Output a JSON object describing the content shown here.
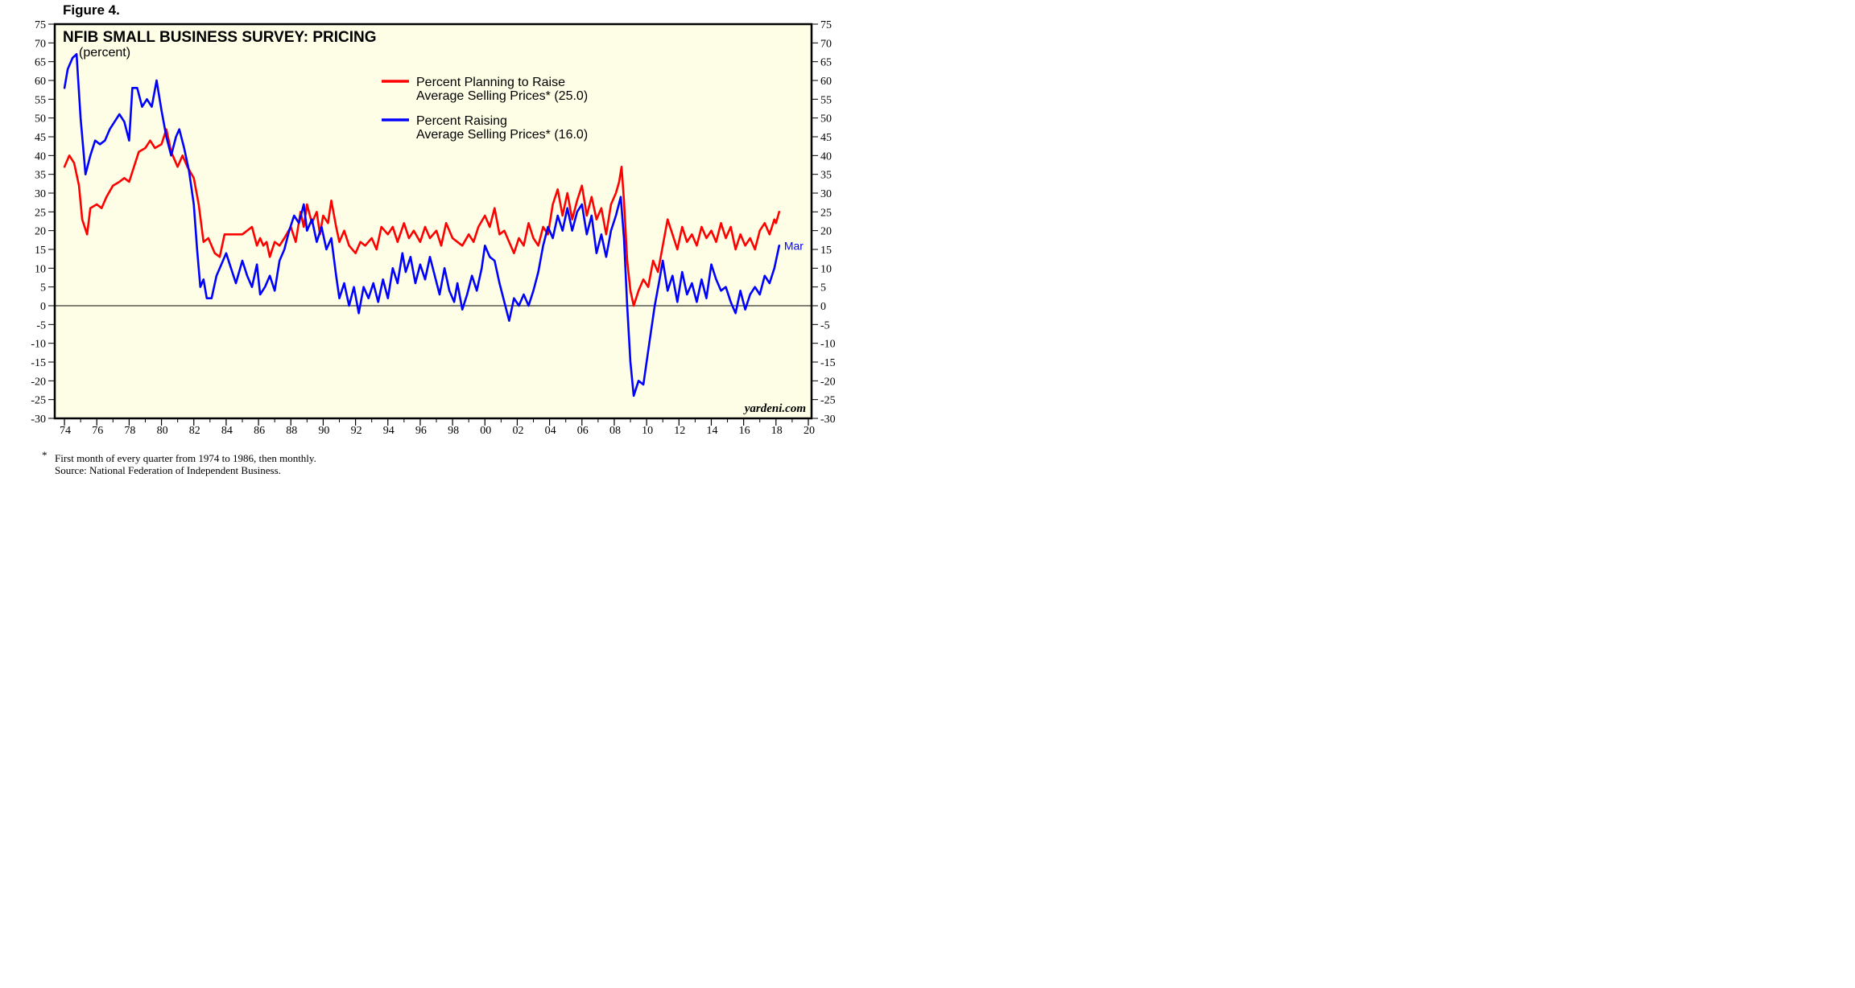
{
  "figure_label": "Figure 4.",
  "brand": "yardeni.com",
  "footnote": {
    "marker": "*",
    "line1": "First month of every quarter from 1974 to 1986, then monthly.",
    "line2": "Source: National Federation of Independent Business."
  },
  "colors": {
    "plot_background": "#fefee6",
    "planning_series": "#ff0000",
    "raising_series": "#0000ff",
    "frame": "#000000"
  },
  "chart_data": {
    "type": "line",
    "title": "NFIB SMALL BUSINESS SURVEY: PRICING",
    "subtitle": "(percent)",
    "ylim": [
      -30,
      75
    ],
    "ytick_step": 5,
    "xlim": [
      1973.4,
      2020.2
    ],
    "xtick_years": [
      1974,
      1976,
      1978,
      1980,
      1982,
      1984,
      1986,
      1988,
      1990,
      1992,
      1994,
      1996,
      1998,
      2000,
      2002,
      2004,
      2006,
      2008,
      2010,
      2012,
      2014,
      2016,
      2018,
      2020
    ],
    "xtick_labels": [
      "74",
      "76",
      "78",
      "80",
      "82",
      "84",
      "86",
      "88",
      "90",
      "92",
      "94",
      "96",
      "98",
      "00",
      "02",
      "04",
      "06",
      "08",
      "10",
      "12",
      "14",
      "16",
      "18",
      "20"
    ],
    "grid": false,
    "zero_line": true,
    "legend_position": "top-center",
    "end_label": "Mar",
    "series": [
      {
        "name": "Percent Planning to Raise",
        "name_line2": "Average Selling Prices* (25.0)",
        "color": "#ff0000",
        "points": [
          [
            1974.0,
            37
          ],
          [
            1974.3,
            40
          ],
          [
            1974.6,
            38
          ],
          [
            1974.9,
            32
          ],
          [
            1975.1,
            23
          ],
          [
            1975.4,
            19
          ],
          [
            1975.6,
            26
          ],
          [
            1976.0,
            27
          ],
          [
            1976.3,
            26
          ],
          [
            1976.6,
            29
          ],
          [
            1977.0,
            32
          ],
          [
            1977.4,
            33
          ],
          [
            1977.7,
            34
          ],
          [
            1978.0,
            33
          ],
          [
            1978.3,
            37
          ],
          [
            1978.6,
            41
          ],
          [
            1979.0,
            42
          ],
          [
            1979.3,
            44
          ],
          [
            1979.6,
            42
          ],
          [
            1980.0,
            43
          ],
          [
            1980.3,
            47
          ],
          [
            1980.6,
            41
          ],
          [
            1981.0,
            37
          ],
          [
            1981.3,
            40
          ],
          [
            1981.6,
            37
          ],
          [
            1982.0,
            34
          ],
          [
            1982.3,
            27
          ],
          [
            1982.6,
            17
          ],
          [
            1982.9,
            18
          ],
          [
            1983.3,
            14
          ],
          [
            1983.6,
            13
          ],
          [
            1983.9,
            19
          ],
          [
            1984.3,
            19
          ],
          [
            1984.6,
            19
          ],
          [
            1985.0,
            19
          ],
          [
            1985.3,
            20
          ],
          [
            1985.6,
            21
          ],
          [
            1985.9,
            16
          ],
          [
            1986.1,
            18
          ],
          [
            1986.3,
            16
          ],
          [
            1986.5,
            17
          ],
          [
            1986.7,
            13
          ],
          [
            1987.0,
            17
          ],
          [
            1987.3,
            16
          ],
          [
            1987.6,
            18
          ],
          [
            1988.0,
            21
          ],
          [
            1988.3,
            17
          ],
          [
            1988.6,
            25
          ],
          [
            1988.8,
            21
          ],
          [
            1989.0,
            27
          ],
          [
            1989.3,
            22
          ],
          [
            1989.6,
            25
          ],
          [
            1989.8,
            19
          ],
          [
            1990.0,
            24
          ],
          [
            1990.3,
            22
          ],
          [
            1990.5,
            28
          ],
          [
            1990.8,
            21
          ],
          [
            1991.0,
            17
          ],
          [
            1991.3,
            20
          ],
          [
            1991.6,
            16
          ],
          [
            1992.0,
            14
          ],
          [
            1992.3,
            17
          ],
          [
            1992.6,
            16
          ],
          [
            1993.0,
            18
          ],
          [
            1993.3,
            15
          ],
          [
            1993.6,
            21
          ],
          [
            1994.0,
            19
          ],
          [
            1994.3,
            21
          ],
          [
            1994.6,
            17
          ],
          [
            1995.0,
            22
          ],
          [
            1995.3,
            18
          ],
          [
            1995.6,
            20
          ],
          [
            1996.0,
            17
          ],
          [
            1996.3,
            21
          ],
          [
            1996.6,
            18
          ],
          [
            1997.0,
            20
          ],
          [
            1997.3,
            16
          ],
          [
            1997.6,
            22
          ],
          [
            1998.0,
            18
          ],
          [
            1998.3,
            17
          ],
          [
            1998.6,
            16
          ],
          [
            1999.0,
            19
          ],
          [
            1999.3,
            17
          ],
          [
            1999.6,
            21
          ],
          [
            2000.0,
            24
          ],
          [
            2000.3,
            21
          ],
          [
            2000.6,
            26
          ],
          [
            2000.9,
            19
          ],
          [
            2001.2,
            20
          ],
          [
            2001.5,
            17
          ],
          [
            2001.8,
            14
          ],
          [
            2002.1,
            18
          ],
          [
            2002.4,
            16
          ],
          [
            2002.7,
            22
          ],
          [
            2003.0,
            18
          ],
          [
            2003.3,
            16
          ],
          [
            2003.6,
            21
          ],
          [
            2003.9,
            19
          ],
          [
            2004.2,
            27
          ],
          [
            2004.5,
            31
          ],
          [
            2004.8,
            24
          ],
          [
            2005.1,
            30
          ],
          [
            2005.4,
            23
          ],
          [
            2005.7,
            28
          ],
          [
            2006.0,
            32
          ],
          [
            2006.3,
            24
          ],
          [
            2006.6,
            29
          ],
          [
            2006.9,
            23
          ],
          [
            2007.2,
            26
          ],
          [
            2007.5,
            19
          ],
          [
            2007.8,
            27
          ],
          [
            2008.1,
            30
          ],
          [
            2008.3,
            33
          ],
          [
            2008.45,
            37
          ],
          [
            2008.6,
            28
          ],
          [
            2008.8,
            12
          ],
          [
            2009.0,
            4
          ],
          [
            2009.2,
            0
          ],
          [
            2009.5,
            4
          ],
          [
            2009.8,
            7
          ],
          [
            2010.1,
            5
          ],
          [
            2010.4,
            12
          ],
          [
            2010.7,
            9
          ],
          [
            2011.0,
            16
          ],
          [
            2011.3,
            23
          ],
          [
            2011.6,
            19
          ],
          [
            2011.9,
            15
          ],
          [
            2012.2,
            21
          ],
          [
            2012.5,
            17
          ],
          [
            2012.8,
            19
          ],
          [
            2013.1,
            16
          ],
          [
            2013.4,
            21
          ],
          [
            2013.7,
            18
          ],
          [
            2014.0,
            20
          ],
          [
            2014.3,
            17
          ],
          [
            2014.6,
            22
          ],
          [
            2014.9,
            18
          ],
          [
            2015.2,
            21
          ],
          [
            2015.5,
            15
          ],
          [
            2015.8,
            19
          ],
          [
            2016.1,
            16
          ],
          [
            2016.4,
            18
          ],
          [
            2016.7,
            15
          ],
          [
            2017.0,
            20
          ],
          [
            2017.3,
            22
          ],
          [
            2017.6,
            19
          ],
          [
            2017.9,
            23
          ],
          [
            2018.0,
            22
          ],
          [
            2018.2,
            25
          ]
        ]
      },
      {
        "name": "Percent Raising",
        "name_line2": "Average Selling Prices* (16.0)",
        "color": "#0000ff",
        "points": [
          [
            1974.0,
            58
          ],
          [
            1974.2,
            63
          ],
          [
            1974.5,
            66
          ],
          [
            1974.75,
            67
          ],
          [
            1975.0,
            50
          ],
          [
            1975.3,
            35
          ],
          [
            1975.6,
            40
          ],
          [
            1975.9,
            44
          ],
          [
            1976.2,
            43
          ],
          [
            1976.5,
            44
          ],
          [
            1976.8,
            47
          ],
          [
            1977.1,
            49
          ],
          [
            1977.4,
            51
          ],
          [
            1977.7,
            49
          ],
          [
            1978.0,
            44
          ],
          [
            1978.2,
            58
          ],
          [
            1978.5,
            58
          ],
          [
            1978.8,
            53
          ],
          [
            1979.1,
            55
          ],
          [
            1979.4,
            53
          ],
          [
            1979.7,
            60
          ],
          [
            1980.0,
            52
          ],
          [
            1980.3,
            45
          ],
          [
            1980.6,
            40
          ],
          [
            1980.9,
            45
          ],
          [
            1981.1,
            47
          ],
          [
            1981.4,
            42
          ],
          [
            1981.7,
            36
          ],
          [
            1982.0,
            27
          ],
          [
            1982.2,
            15
          ],
          [
            1982.4,
            5
          ],
          [
            1982.6,
            7
          ],
          [
            1982.8,
            2
          ],
          [
            1983.1,
            2
          ],
          [
            1983.4,
            8
          ],
          [
            1983.7,
            11
          ],
          [
            1984.0,
            14
          ],
          [
            1984.3,
            10
          ],
          [
            1984.6,
            6
          ],
          [
            1985.0,
            12
          ],
          [
            1985.3,
            8
          ],
          [
            1985.6,
            5
          ],
          [
            1985.9,
            11
          ],
          [
            1986.1,
            3
          ],
          [
            1986.4,
            5
          ],
          [
            1986.7,
            8
          ],
          [
            1987.0,
            4
          ],
          [
            1987.3,
            12
          ],
          [
            1987.6,
            15
          ],
          [
            1987.9,
            20
          ],
          [
            1988.2,
            24
          ],
          [
            1988.5,
            22
          ],
          [
            1988.8,
            27
          ],
          [
            1989.0,
            20
          ],
          [
            1989.3,
            23
          ],
          [
            1989.6,
            17
          ],
          [
            1989.9,
            21
          ],
          [
            1990.2,
            15
          ],
          [
            1990.5,
            18
          ],
          [
            1990.8,
            8
          ],
          [
            1991.0,
            2
          ],
          [
            1991.3,
            6
          ],
          [
            1991.6,
            0
          ],
          [
            1991.9,
            5
          ],
          [
            1992.2,
            -2
          ],
          [
            1992.5,
            5
          ],
          [
            1992.8,
            2
          ],
          [
            1993.1,
            6
          ],
          [
            1993.4,
            1
          ],
          [
            1993.7,
            7
          ],
          [
            1994.0,
            2
          ],
          [
            1994.3,
            10
          ],
          [
            1994.6,
            6
          ],
          [
            1994.9,
            14
          ],
          [
            1995.1,
            9
          ],
          [
            1995.4,
            13
          ],
          [
            1995.7,
            6
          ],
          [
            1996.0,
            11
          ],
          [
            1996.3,
            7
          ],
          [
            1996.6,
            13
          ],
          [
            1996.9,
            8
          ],
          [
            1997.2,
            3
          ],
          [
            1997.5,
            10
          ],
          [
            1997.8,
            4
          ],
          [
            1998.1,
            1
          ],
          [
            1998.3,
            6
          ],
          [
            1998.6,
            -1
          ],
          [
            1998.9,
            3
          ],
          [
            1999.2,
            8
          ],
          [
            1999.5,
            4
          ],
          [
            1999.8,
            10
          ],
          [
            2000.0,
            16
          ],
          [
            2000.3,
            13
          ],
          [
            2000.6,
            12
          ],
          [
            2000.9,
            6
          ],
          [
            2001.2,
            1
          ],
          [
            2001.5,
            -4
          ],
          [
            2001.8,
            2
          ],
          [
            2002.1,
            0
          ],
          [
            2002.4,
            3
          ],
          [
            2002.7,
            0
          ],
          [
            2003.0,
            4
          ],
          [
            2003.3,
            9
          ],
          [
            2003.6,
            16
          ],
          [
            2003.9,
            21
          ],
          [
            2004.2,
            18
          ],
          [
            2004.5,
            24
          ],
          [
            2004.8,
            20
          ],
          [
            2005.1,
            26
          ],
          [
            2005.4,
            20
          ],
          [
            2005.7,
            25
          ],
          [
            2006.0,
            27
          ],
          [
            2006.3,
            19
          ],
          [
            2006.6,
            24
          ],
          [
            2006.9,
            14
          ],
          [
            2007.2,
            19
          ],
          [
            2007.5,
            13
          ],
          [
            2007.8,
            20
          ],
          [
            2008.1,
            24
          ],
          [
            2008.4,
            29
          ],
          [
            2008.6,
            18
          ],
          [
            2008.8,
            0
          ],
          [
            2009.0,
            -15
          ],
          [
            2009.2,
            -24
          ],
          [
            2009.5,
            -20
          ],
          [
            2009.8,
            -21
          ],
          [
            2010.0,
            -15
          ],
          [
            2010.2,
            -9
          ],
          [
            2010.5,
            0
          ],
          [
            2010.8,
            7
          ],
          [
            2011.0,
            12
          ],
          [
            2011.3,
            4
          ],
          [
            2011.6,
            8
          ],
          [
            2011.9,
            1
          ],
          [
            2012.2,
            9
          ],
          [
            2012.5,
            3
          ],
          [
            2012.8,
            6
          ],
          [
            2013.1,
            1
          ],
          [
            2013.4,
            7
          ],
          [
            2013.7,
            2
          ],
          [
            2014.0,
            11
          ],
          [
            2014.3,
            7
          ],
          [
            2014.6,
            4
          ],
          [
            2014.9,
            5
          ],
          [
            2015.2,
            1
          ],
          [
            2015.5,
            -2
          ],
          [
            2015.8,
            4
          ],
          [
            2016.1,
            -1
          ],
          [
            2016.4,
            3
          ],
          [
            2016.7,
            5
          ],
          [
            2017.0,
            3
          ],
          [
            2017.3,
            8
          ],
          [
            2017.6,
            6
          ],
          [
            2017.9,
            10
          ],
          [
            2018.0,
            12
          ],
          [
            2018.2,
            16
          ]
        ]
      }
    ]
  }
}
